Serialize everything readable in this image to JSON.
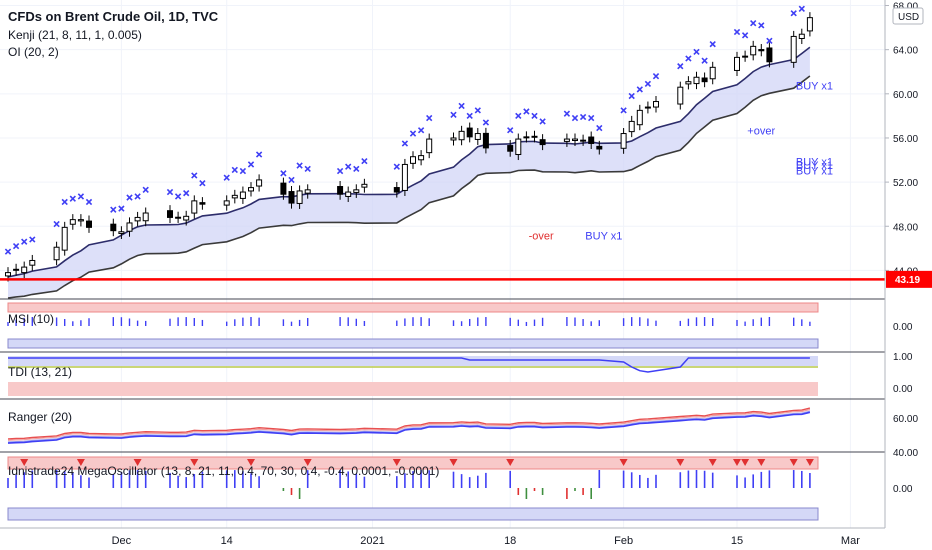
{
  "header": {
    "title": "CFDs on Brent Crude Oil, 1D, TVC",
    "indicator1": "Kenji (21, 8, 11, 1, 0.005)",
    "indicator2": "OI (20, 2)"
  },
  "currency": "USD",
  "colors": {
    "up": "#ffffff",
    "down": "#000000",
    "signal": "#3f3ff5",
    "price_line": "#ff0000",
    "band_fill": "#cfd3f7",
    "band_upper": "#2d2d6b",
    "band_lower": "#3a3a3a",
    "red_zone": "#f8c9c9",
    "blue_zone": "#d4d8f7"
  },
  "price_line": {
    "value": 43.19,
    "label": "43.19"
  },
  "annotations": [
    {
      "text": "+over",
      "color": "#3f3ff5",
      "i": 65,
      "price": 56.3
    },
    {
      "text": "+over",
      "color": "#3f3ff5",
      "i": 137,
      "price": 68.6
    },
    {
      "text": "-over",
      "color": "#e03030",
      "i": 46,
      "price": 46.8
    },
    {
      "text": "BUY x1",
      "color": "#3f3ff5",
      "i": 51,
      "price": 46.8
    },
    {
      "text": "BUY x1",
      "color": "#3f3ff5",
      "i": 85,
      "price": 52.7
    },
    {
      "text": "BUY x1",
      "color": "#3f3ff5",
      "i": 95,
      "price": 53.2
    },
    {
      "text": "BUY x1",
      "color": "#3f3ff5",
      "i": 101,
      "price": 53.5
    },
    {
      "text": "BUY x1",
      "color": "#3f3ff5",
      "i": 136,
      "price": 60.4
    }
  ],
  "panels": [
    {
      "label": "MSI (10)",
      "value_label": "0.00"
    },
    {
      "label": "TDI (13, 21)",
      "value_label_top": "1.00",
      "value_label": "0.00"
    },
    {
      "label": "Ranger (20)",
      "value_label": "60.00",
      "value_label_low": "40.00"
    },
    {
      "label": "Idnistrade24 MegaOscillator (13, 8, 21, 11, 0.4, 70, 30, 0.4, -0.4, 0.0001, -0.0001)",
      "value_label": "0.00"
    }
  ],
  "chart_data": {
    "type": "candlestick",
    "y_axis": {
      "ticks": [
        44,
        48,
        52,
        56,
        60,
        64,
        68
      ],
      "tick_labels": [
        "44.00",
        "48.00",
        "52.00",
        "56.00",
        "60.00",
        "64.00",
        "68.00"
      ],
      "range": [
        41.5,
        68.5
      ]
    },
    "x_axis": {
      "start_date": "2020-11-17",
      "end_date": "2021-02-25",
      "tick_labels": [
        {
          "label": "Dec",
          "date": "2020-12-01"
        },
        {
          "label": "14",
          "date": "2020-12-14"
        },
        {
          "label": "2021",
          "date": "2021-01-01"
        },
        {
          "label": "18",
          "date": "2021-01-18"
        },
        {
          "label": "Feb",
          "date": "2021-02-01"
        },
        {
          "label": "15",
          "date": "2021-02-15"
        },
        {
          "label": "Mar",
          "date": "2021-03-01"
        }
      ]
    },
    "candles": [
      {
        "date": "2020-11-17",
        "close": 43.8
      },
      {
        "date": "2020-11-18",
        "close": 44.1
      },
      {
        "date": "2020-11-19",
        "close": 44.3
      },
      {
        "date": "2020-11-20",
        "close": 44.9
      },
      {
        "date": "2020-11-23",
        "close": 46.1
      },
      {
        "date": "2020-11-24",
        "close": 47.9
      },
      {
        "date": "2020-11-25",
        "close": 48.6
      },
      {
        "date": "2020-11-26",
        "close": 48.6
      },
      {
        "date": "2020-11-27",
        "close": 47.9
      },
      {
        "date": "2020-11-30",
        "close": 47.6
      },
      {
        "date": "2020-12-01",
        "close": 47.5
      },
      {
        "date": "2020-12-02",
        "close": 48.3
      },
      {
        "date": "2020-12-03",
        "close": 48.8
      },
      {
        "date": "2020-12-04",
        "close": 49.2
      },
      {
        "date": "2020-12-07",
        "close": 48.8
      },
      {
        "date": "2020-12-08",
        "close": 48.8
      },
      {
        "date": "2020-12-09",
        "close": 48.9
      },
      {
        "date": "2020-12-10",
        "close": 50.3
      },
      {
        "date": "2020-12-11",
        "close": 50.0
      },
      {
        "date": "2020-12-14",
        "close": 50.3
      },
      {
        "date": "2020-12-15",
        "close": 50.8
      },
      {
        "date": "2020-12-16",
        "close": 51.1
      },
      {
        "date": "2020-12-17",
        "close": 51.5
      },
      {
        "date": "2020-12-18",
        "close": 52.2
      },
      {
        "date": "2020-12-21",
        "close": 50.9
      },
      {
        "date": "2020-12-22",
        "close": 50.1
      },
      {
        "date": "2020-12-23",
        "close": 51.2
      },
      {
        "date": "2020-12-24",
        "close": 51.3
      },
      {
        "date": "2020-12-28",
        "close": 50.9
      },
      {
        "date": "2020-12-29",
        "close": 51.1
      },
      {
        "date": "2020-12-30",
        "close": 51.3
      },
      {
        "date": "2020-12-31",
        "close": 51.8
      },
      {
        "date": "2021-01-04",
        "close": 51.1
      },
      {
        "date": "2021-01-05",
        "close": 53.6
      },
      {
        "date": "2021-01-06",
        "close": 54.3
      },
      {
        "date": "2021-01-07",
        "close": 54.4
      },
      {
        "date": "2021-01-08",
        "close": 55.9
      },
      {
        "date": "2021-01-11",
        "close": 56.0
      },
      {
        "date": "2021-01-12",
        "close": 56.6
      },
      {
        "date": "2021-01-13",
        "close": 56.1
      },
      {
        "date": "2021-01-14",
        "close": 56.4
      },
      {
        "date": "2021-01-15",
        "close": 55.1
      },
      {
        "date": "2021-01-18",
        "close": 54.8
      },
      {
        "date": "2021-01-19",
        "close": 55.9
      },
      {
        "date": "2021-01-20",
        "close": 56.1
      },
      {
        "date": "2021-01-21",
        "close": 56.1
      },
      {
        "date": "2021-01-22",
        "close": 55.4
      },
      {
        "date": "2021-01-25",
        "close": 55.9
      },
      {
        "date": "2021-01-26",
        "close": 55.9
      },
      {
        "date": "2021-01-27",
        "close": 55.8
      },
      {
        "date": "2021-01-28",
        "close": 55.5
      },
      {
        "date": "2021-01-29",
        "close": 55.0
      },
      {
        "date": "2021-02-01",
        "close": 56.4
      },
      {
        "date": "2021-02-02",
        "close": 57.5
      },
      {
        "date": "2021-02-03",
        "close": 58.5
      },
      {
        "date": "2021-02-04",
        "close": 58.8
      },
      {
        "date": "2021-02-05",
        "close": 59.3
      },
      {
        "date": "2021-02-08",
        "close": 60.6
      },
      {
        "date": "2021-02-09",
        "close": 61.1
      },
      {
        "date": "2021-02-10",
        "close": 61.5
      },
      {
        "date": "2021-02-11",
        "close": 61.1
      },
      {
        "date": "2021-02-12",
        "close": 62.4
      },
      {
        "date": "2021-02-15",
        "close": 63.3
      },
      {
        "date": "2021-02-16",
        "close": 63.4
      },
      {
        "date": "2021-02-17",
        "close": 64.3
      },
      {
        "date": "2021-02-18",
        "close": 63.9
      },
      {
        "date": "2021-02-19",
        "close": 62.9
      },
      {
        "date": "2021-02-22",
        "close": 65.2
      },
      {
        "date": "2021-02-23",
        "close": 65.4
      },
      {
        "date": "2021-02-24",
        "close": 66.9
      }
    ]
  }
}
